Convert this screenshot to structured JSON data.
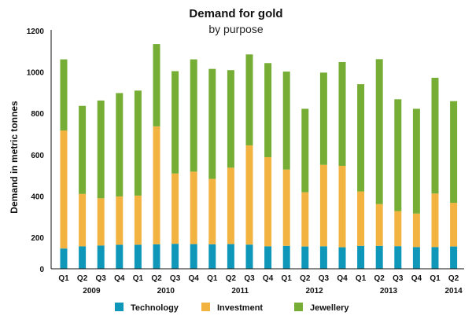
{
  "chart_data": {
    "type": "bar",
    "stacked": true,
    "title": "Demand for gold",
    "subtitle": "by purpose",
    "xlabel": "",
    "ylabel": "Demand in metric tonnes",
    "ylim": [
      0,
      1200
    ],
    "yticks": [
      0,
      200,
      400,
      600,
      800,
      1000,
      1200
    ],
    "grid": false,
    "legend_position": "bottom",
    "categories": [
      "Q1",
      "Q2",
      "Q3",
      "Q4",
      "Q1",
      "Q2",
      "Q3",
      "Q4",
      "Q1",
      "Q2",
      "Q3",
      "Q4",
      "Q1",
      "Q2",
      "Q3",
      "Q4",
      "Q1",
      "Q2",
      "Q3",
      "Q4",
      "Q1",
      "Q2"
    ],
    "years": [
      {
        "label": "2009",
        "at": 1.5
      },
      {
        "label": "2010",
        "at": 5.5
      },
      {
        "label": "2011",
        "at": 9.5
      },
      {
        "label": "2012",
        "at": 13.5
      },
      {
        "label": "2013",
        "at": 17.5
      },
      {
        "label": "2014",
        "at": 21
      }
    ],
    "series": [
      {
        "name": "Technology",
        "color": "#0e97b8",
        "values": [
          129,
          143,
          148,
          153,
          153,
          156,
          159,
          157,
          156,
          157,
          154,
          143,
          146,
          142,
          143,
          137,
          146,
          146,
          144,
          138,
          138,
          142
        ]
      },
      {
        "name": "Investment",
        "color": "#f2b341",
        "values": [
          588,
          267,
          241,
          245,
          249,
          581,
          350,
          361,
          327,
          380,
          491,
          445,
          382,
          276,
          408,
          409,
          276,
          215,
          183,
          177,
          274,
          225
        ]
      },
      {
        "name": "Jewellery",
        "color": "#76ad35",
        "values": [
          344,
          426,
          473,
          500,
          508,
          398,
          495,
          543,
          532,
          472,
          440,
          455,
          474,
          404,
          446,
          502,
          519,
          701,
          541,
          507,
          560,
          492
        ]
      }
    ]
  }
}
